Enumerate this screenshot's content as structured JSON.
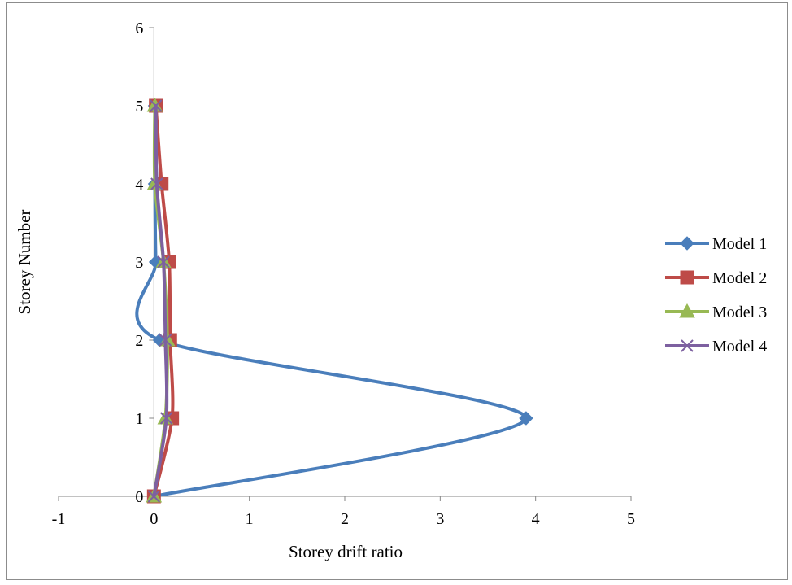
{
  "chart_data": {
    "type": "scatter",
    "xlabel": "Storey drift ratio",
    "ylabel": "Storey Number",
    "xlim": [
      -1,
      5
    ],
    "ylim": [
      0,
      6
    ],
    "x_ticks": [
      -1,
      0,
      1,
      2,
      3,
      4,
      5
    ],
    "y_ticks": [
      0,
      1,
      2,
      3,
      4,
      5,
      6
    ],
    "grid": false,
    "legend_position": "right",
    "smooth_lines": true,
    "series": [
      {
        "name": "Model 1",
        "color": "#4a7ebb",
        "marker": "diamond",
        "points": [
          [
            0,
            0
          ],
          [
            3.9,
            1
          ],
          [
            0.06,
            2
          ],
          [
            0.02,
            3
          ],
          [
            0.01,
            4
          ],
          [
            0.01,
            5
          ]
        ]
      },
      {
        "name": "Model 2",
        "color": "#be4b48",
        "marker": "square",
        "points": [
          [
            0,
            0
          ],
          [
            0.19,
            1
          ],
          [
            0.17,
            2
          ],
          [
            0.16,
            3
          ],
          [
            0.08,
            4
          ],
          [
            0.02,
            5
          ]
        ]
      },
      {
        "name": "Model 3",
        "color": "#98b954",
        "marker": "triangle",
        "points": [
          [
            0,
            0
          ],
          [
            0.12,
            1
          ],
          [
            0.14,
            2
          ],
          [
            0.1,
            3
          ],
          [
            0.01,
            4
          ],
          [
            0.01,
            5
          ]
        ]
      },
      {
        "name": "Model 4",
        "color": "#7d60a0",
        "marker": "x",
        "points": [
          [
            0,
            0
          ],
          [
            0.13,
            1
          ],
          [
            0.12,
            2
          ],
          [
            0.1,
            3
          ],
          [
            0.03,
            4
          ],
          [
            0.02,
            5
          ]
        ]
      }
    ]
  }
}
